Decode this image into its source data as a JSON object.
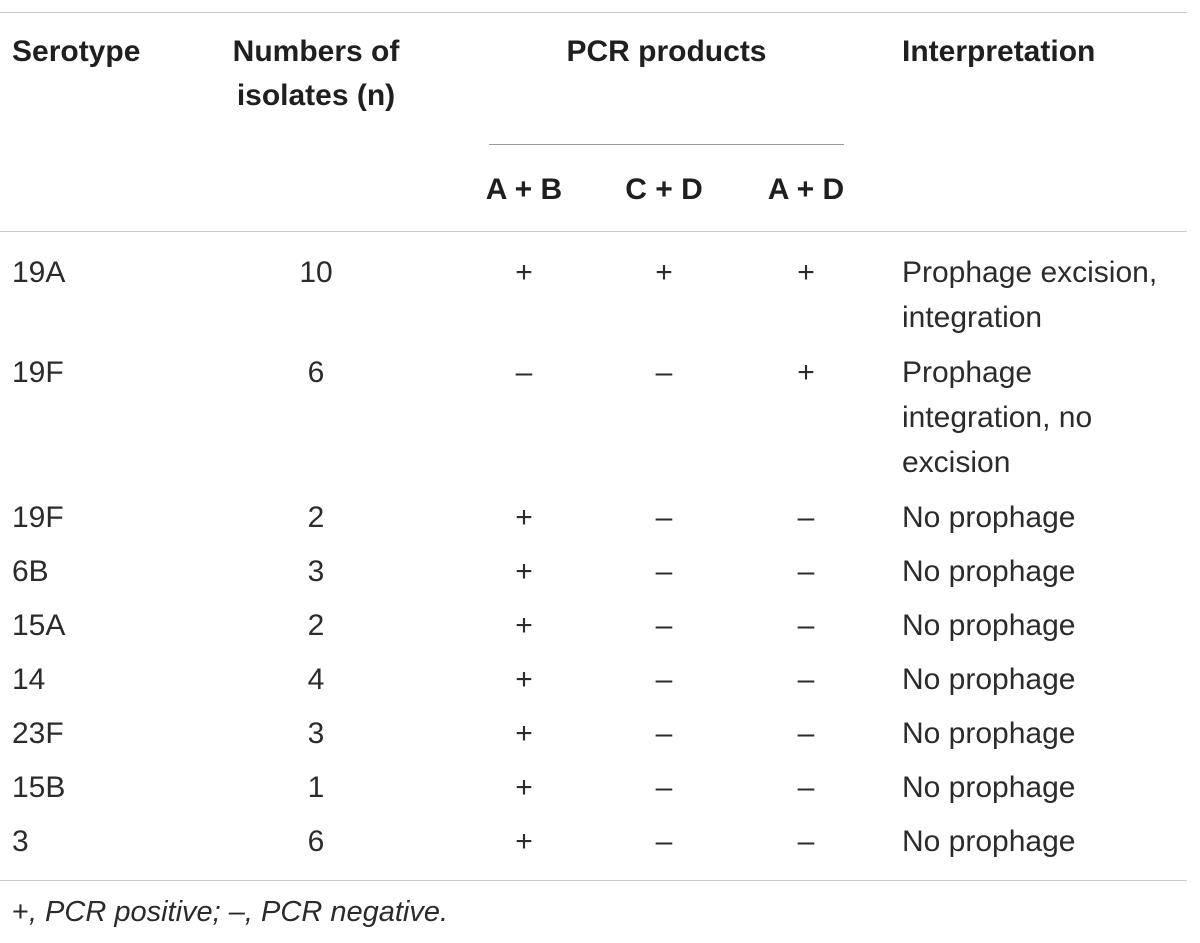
{
  "table": {
    "headers": {
      "serotype": "Serotype",
      "numbers": [
        "Numbers of",
        "isolates (n)"
      ],
      "pcr_products": "PCR products",
      "interpretation": "Interpretation",
      "sub": [
        "A + B",
        "C + D",
        "A + D"
      ]
    },
    "rows": [
      {
        "serotype": "19A",
        "n": "10",
        "ab": "+",
        "cd": "+",
        "ad": "+",
        "interp": [
          "Prophage excision,",
          "integration"
        ]
      },
      {
        "serotype": "19F",
        "n": "6",
        "ab": "–",
        "cd": "–",
        "ad": "+",
        "interp": [
          "Prophage",
          "integration, no",
          "excision"
        ]
      },
      {
        "serotype": "19F",
        "n": "2",
        "ab": "+",
        "cd": "–",
        "ad": "–",
        "interp": [
          "No prophage"
        ]
      },
      {
        "serotype": "6B",
        "n": "3",
        "ab": "+",
        "cd": "–",
        "ad": "–",
        "interp": [
          "No prophage"
        ]
      },
      {
        "serotype": "15A",
        "n": "2",
        "ab": "+",
        "cd": "–",
        "ad": "–",
        "interp": [
          "No prophage"
        ]
      },
      {
        "serotype": "14",
        "n": "4",
        "ab": "+",
        "cd": "–",
        "ad": "–",
        "interp": [
          "No prophage"
        ]
      },
      {
        "serotype": "23F",
        "n": "3",
        "ab": "+",
        "cd": "–",
        "ad": "–",
        "interp": [
          "No prophage"
        ]
      },
      {
        "serotype": "15B",
        "n": "1",
        "ab": "+",
        "cd": "–",
        "ad": "–",
        "interp": [
          "No prophage"
        ]
      },
      {
        "serotype": "3",
        "n": "6",
        "ab": "+",
        "cd": "–",
        "ad": "–",
        "interp": [
          "No prophage"
        ]
      }
    ],
    "footnote": {
      "plus_symbol": "+",
      "plus_text": ", PCR positive; ",
      "minus_symbol": "–",
      "minus_text": ", PCR negative."
    }
  }
}
